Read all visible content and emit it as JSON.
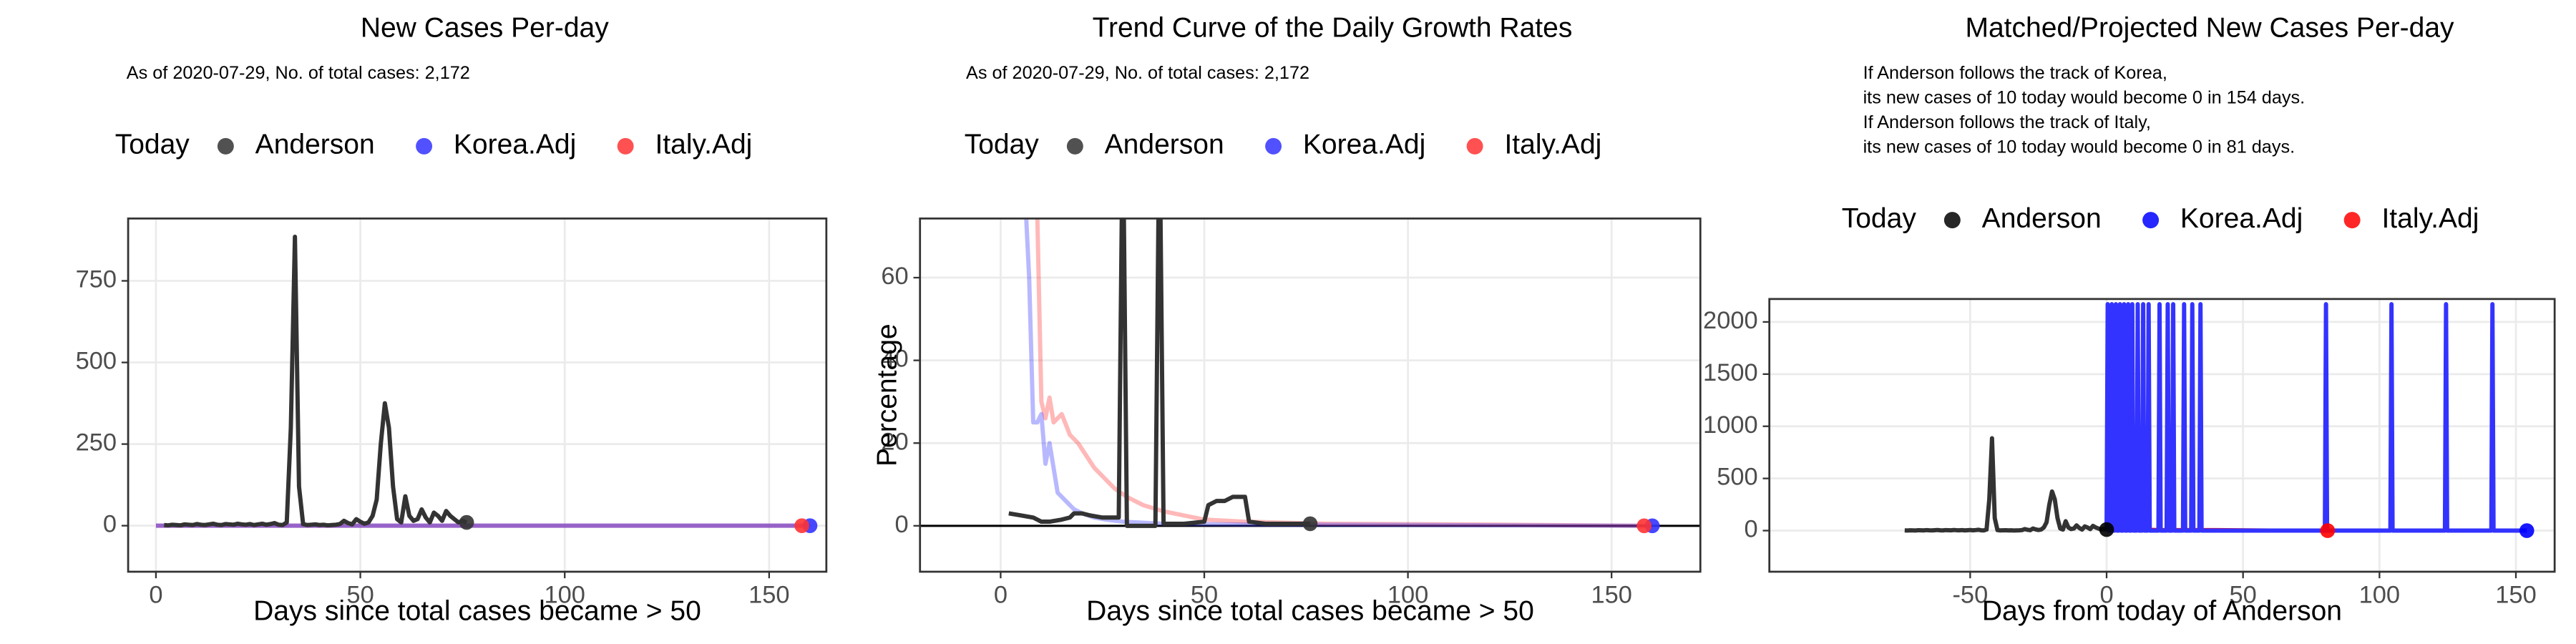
{
  "chart_data": [
    {
      "type": "line",
      "title": "New Cases Per-day",
      "subtitle": [
        "As of 2020-07-29, No. of total cases: 2,172"
      ],
      "xlabel": "Days since total cases became > 50",
      "legend": {
        "title": "Today",
        "position": "top"
      },
      "grid": true,
      "xlim": [
        -6.8,
        164
      ],
      "ylim": [
        -141,
        941
      ],
      "xticks": [
        0,
        50,
        100,
        150
      ],
      "yticks": [
        0,
        250,
        500,
        750
      ],
      "series": [
        {
          "name": "Anderson",
          "color": "#333333",
          "point_color": "#333333",
          "line_opacity": 1,
          "x": [
            2,
            3,
            4,
            5,
            6,
            7,
            8,
            9,
            10,
            11,
            12,
            13,
            14,
            15,
            16,
            17,
            18,
            19,
            20,
            21,
            22,
            23,
            24,
            25,
            26,
            27,
            28,
            29,
            30,
            31,
            32,
            33,
            34,
            35,
            36,
            37,
            38,
            39,
            40,
            41,
            42,
            43,
            44,
            45,
            46,
            47,
            48,
            49,
            50,
            51,
            52,
            53,
            54,
            55,
            56,
            57,
            58,
            59,
            60,
            61,
            62,
            63,
            64,
            65,
            66,
            67,
            68,
            69,
            70,
            71,
            72,
            73,
            74,
            75,
            76
          ],
          "values": [
            2,
            1,
            3,
            2,
            1,
            4,
            3,
            2,
            5,
            3,
            2,
            4,
            6,
            3,
            2,
            5,
            4,
            3,
            6,
            4,
            3,
            5,
            2,
            4,
            6,
            3,
            5,
            8,
            3,
            2,
            10,
            300,
            885,
            120,
            5,
            2,
            3,
            4,
            2,
            3,
            1,
            2,
            3,
            5,
            15,
            8,
            4,
            20,
            12,
            6,
            10,
            30,
            80,
            250,
            375,
            300,
            120,
            20,
            10,
            90,
            30,
            15,
            20,
            50,
            25,
            10,
            40,
            30,
            15,
            45,
            30,
            20,
            10,
            15,
            10
          ],
          "today": {
            "x": 76,
            "value": 10
          }
        },
        {
          "name": "Korea.Adj",
          "color": "#3333ff",
          "point_color": "#3333ff",
          "line_opacity": 0.5,
          "x": [
            0,
            160
          ],
          "values": [
            0,
            0
          ],
          "today": {
            "x": 160,
            "value": 0
          }
        },
        {
          "name": "Italy.Adj",
          "color": "#ff3333",
          "point_color": "#ff3333",
          "line_opacity": 0.5,
          "x": [
            0,
            158
          ],
          "values": [
            0,
            0
          ],
          "today": {
            "x": 158,
            "value": 0
          }
        }
      ]
    },
    {
      "type": "line",
      "title": "Trend Curve of the Daily Growth Rates",
      "subtitle": [
        "As of 2020-07-29, No. of total cases: 2,172"
      ],
      "xlabel": "Days since total cases became > 50",
      "ylabel": "Percentage",
      "legend": {
        "title": "Today",
        "position": "top"
      },
      "grid": true,
      "hline": 0,
      "xlim": [
        -19.8,
        171.8
      ],
      "ylim": [
        -11.1,
        74.3
      ],
      "xticks": [
        0,
        50,
        100,
        150
      ],
      "yticks": [
        0,
        20,
        40,
        60
      ],
      "series": [
        {
          "name": "Anderson",
          "color": "#333333",
          "point_color": "#333333",
          "line_opacity": 1,
          "x": [
            2,
            5,
            8,
            10,
            12,
            15,
            17,
            18,
            20,
            22,
            25,
            28,
            29,
            30,
            31,
            38,
            39,
            40,
            45,
            50,
            51,
            53,
            55,
            57,
            60,
            61,
            65,
            76
          ],
          "values": [
            3,
            2.5,
            2,
            1,
            1,
            1.5,
            2,
            3,
            3,
            2.5,
            2,
            2,
            2,
            100,
            0,
            0,
            100,
            0.5,
            0.5,
            1,
            5,
            6,
            6,
            7,
            7,
            1,
            0.5,
            0.5
          ],
          "today": {
            "x": 76,
            "value": 0.5
          }
        },
        {
          "name": "Korea.Adj",
          "color": "#3333ff",
          "point_color": "#3333ff",
          "line_opacity": 0.35,
          "x": [
            6,
            7,
            8,
            9,
            10,
            11,
            12,
            14,
            16,
            18,
            20,
            23,
            26,
            30,
            40,
            60,
            100,
            160
          ],
          "values": [
            80,
            60,
            25,
            25,
            27,
            15,
            20,
            8,
            6,
            4,
            3,
            2,
            1.5,
            1,
            0.5,
            0.3,
            0.2,
            0
          ],
          "today": {
            "x": 160,
            "value": 0
          }
        },
        {
          "name": "Italy.Adj",
          "color": "#ff3333",
          "point_color": "#ff3333",
          "line_opacity": 0.35,
          "x": [
            9,
            10,
            11,
            12,
            13,
            15,
            17,
            19,
            21,
            23,
            25,
            28,
            31,
            35,
            40,
            45,
            50,
            60,
            80,
            120,
            158
          ],
          "values": [
            75,
            30,
            26,
            31,
            25,
            27,
            22,
            20,
            17,
            14,
            12,
            9,
            7,
            5,
            3.5,
            2.5,
            1.5,
            1,
            0.5,
            0.3,
            0
          ],
          "today": {
            "x": 158,
            "value": 0
          }
        }
      ]
    },
    {
      "type": "line",
      "title": "Matched/Projected New Cases Per-day",
      "subtitle": [
        "If Anderson follows the track of Korea,",
        "its new cases of 10 today would become 0 in 154 days.",
        "If Anderson follows the track of Italy,",
        "its new cases of 10 today would become 0 in 81 days."
      ],
      "xlabel": "Days from today of Anderson",
      "legend": {
        "title": "Today",
        "position": "top"
      },
      "grid": true,
      "xlim": [
        -123.6,
        164.2
      ],
      "ylim": [
        -394,
        2220
      ],
      "xticks": [
        -50,
        0,
        50,
        100,
        150
      ],
      "yticks": [
        0,
        500,
        1000,
        1500,
        2000
      ],
      "series": [
        {
          "name": "Anderson",
          "color": "#333333",
          "point_color": "#000000",
          "line_opacity": 1,
          "x": [
            -74,
            -73,
            -72,
            -71,
            -70,
            -69,
            -68,
            -67,
            -66,
            -65,
            -64,
            -63,
            -62,
            -61,
            -60,
            -59,
            -58,
            -57,
            -56,
            -55,
            -54,
            -53,
            -52,
            -51,
            -50,
            -49,
            -48,
            -47,
            -46,
            -45,
            -44,
            -43,
            -42,
            -41,
            -40,
            -39,
            -38,
            -37,
            -36,
            -35,
            -34,
            -33,
            -32,
            -31,
            -30,
            -29,
            -28,
            -27,
            -26,
            -25,
            -24,
            -23,
            -22,
            -21,
            -20,
            -19,
            -18,
            -17,
            -16,
            -15,
            -14,
            -13,
            -12,
            -11,
            -10,
            -9,
            -8,
            -7,
            -6,
            -5,
            -4,
            -3,
            -2,
            -1,
            0
          ],
          "values": [
            2,
            1,
            3,
            2,
            1,
            4,
            3,
            2,
            5,
            3,
            2,
            4,
            6,
            3,
            2,
            5,
            4,
            3,
            6,
            4,
            3,
            5,
            2,
            4,
            6,
            3,
            5,
            8,
            3,
            2,
            10,
            300,
            885,
            120,
            5,
            2,
            3,
            4,
            2,
            3,
            1,
            2,
            3,
            5,
            15,
            8,
            4,
            20,
            12,
            6,
            10,
            30,
            80,
            250,
            375,
            300,
            120,
            20,
            10,
            90,
            30,
            15,
            20,
            50,
            25,
            10,
            40,
            30,
            15,
            45,
            30,
            20,
            10,
            15,
            10
          ],
          "today": {
            "x": 0,
            "value": 10
          }
        },
        {
          "name": "Korea.Adj",
          "color": "#3333ff",
          "point_color": "#0000ff",
          "line_opacity": 1,
          "x": [
            0,
            0.4,
            0.8,
            1.5,
            1.9,
            2.3,
            3,
            3.4,
            3.8,
            4.5,
            4.9,
            5.3,
            6,
            6.4,
            6.8,
            7.5,
            7.9,
            8.3,
            9,
            9.4,
            9.8,
            11,
            11.4,
            11.8,
            13,
            13.4,
            13.8,
            15,
            15.4,
            15.8,
            19,
            19.4,
            19.8,
            22,
            22.4,
            22.8,
            24,
            24.4,
            24.8,
            28,
            28.4,
            28.8,
            31,
            31.4,
            31.8,
            34,
            34.4,
            34.8,
            80,
            80.4,
            80.8,
            104,
            104.4,
            104.8,
            124,
            124.4,
            124.8,
            141,
            141.4,
            141.8,
            154
          ],
          "values": [
            0,
            2170,
            0,
            0,
            2170,
            0,
            0,
            2170,
            0,
            0,
            2170,
            0,
            0,
            2170,
            0,
            0,
            2170,
            0,
            0,
            2170,
            0,
            0,
            2170,
            0,
            0,
            2170,
            0,
            0,
            2170,
            0,
            0,
            2170,
            0,
            0,
            2170,
            0,
            0,
            2170,
            0,
            0,
            2170,
            0,
            0,
            2170,
            0,
            0,
            2170,
            0,
            0,
            2170,
            0,
            0,
            2170,
            0,
            0,
            2170,
            0,
            0,
            2170,
            0,
            0
          ],
          "today": {
            "x": 154,
            "value": 0
          }
        },
        {
          "name": "Italy.Adj",
          "color": "#ee1111",
          "point_color": "#ff0000",
          "line_opacity": 1,
          "x": [
            0,
            10,
            20,
            40,
            60,
            81
          ],
          "values": [
            20,
            10,
            5,
            5,
            0,
            0
          ],
          "today": {
            "x": 81,
            "value": 0
          }
        }
      ]
    }
  ]
}
